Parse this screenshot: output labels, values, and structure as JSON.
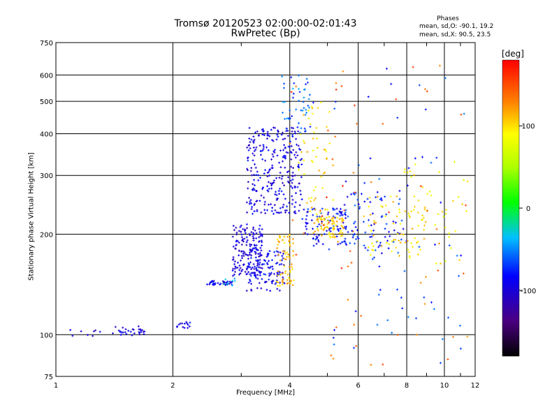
{
  "chart_data": {
    "type": "scatter",
    "title": "Tromsø 20120523 02:00:00-02:01:43",
    "subtitle": "RwPretec (Bp)",
    "xlabel": "Frequency [MHz]",
    "ylabel": "Stationary phase Virtual Height [km]",
    "xscale": "log",
    "yscale": "log",
    "xlim": [
      1,
      12
    ],
    "ylim": [
      75,
      750
    ],
    "x_ticks": [
      1,
      2,
      4,
      6,
      8,
      10,
      12
    ],
    "y_ticks": [
      75,
      100,
      200,
      300,
      400,
      500,
      600,
      750
    ],
    "grid": true,
    "phases_header": "Phases",
    "phases_stats": [
      "mean, sd,O: -90.1, 19.2",
      "mean, sd,X:  90.5, 23.5"
    ],
    "colorbar": {
      "label": "[deg]",
      "range": [
        -180,
        180
      ],
      "ticks": [
        100,
        0,
        -100
      ],
      "colormap": "rainbow (black-purple-blue-cyan-green-yellow-orange-red)"
    },
    "clusters": [
      {
        "x": [
          1.05,
          1.3
        ],
        "y": [
          98,
          104
        ],
        "phase": -100,
        "n": 8
      },
      {
        "x": [
          1.4,
          1.7
        ],
        "y": [
          99,
          106
        ],
        "phase": -95,
        "n": 30
      },
      {
        "x": [
          2.05,
          2.25
        ],
        "y": [
          104,
          110
        ],
        "phase": -100,
        "n": 14
      },
      {
        "x": [
          2.4,
          2.85
        ],
        "y": [
          141,
          145
        ],
        "phase": -95,
        "n": 35
      },
      {
        "x": [
          2.7,
          3.0
        ],
        "y": [
          140,
          148
        ],
        "phase": -30,
        "n": 8
      },
      {
        "x": [
          2.85,
          3.4
        ],
        "y": [
          150,
          215
        ],
        "phase": -100,
        "n": 160
      },
      {
        "x": [
          3.1,
          3.9
        ],
        "y": [
          135,
          180
        ],
        "phase": -90,
        "n": 120
      },
      {
        "x": [
          3.1,
          4.3
        ],
        "y": [
          230,
          420
        ],
        "phase": -95,
        "n": 280
      },
      {
        "x": [
          3.8,
          4.6
        ],
        "y": [
          400,
          600
        ],
        "phase": -60,
        "n": 50
      },
      {
        "x": [
          3.7,
          4.1
        ],
        "y": [
          140,
          200
        ],
        "phase": 110,
        "n": 70
      },
      {
        "x": [
          4.3,
          5.6
        ],
        "y": [
          180,
          240
        ],
        "phase": -85,
        "n": 90
      },
      {
        "x": [
          4.6,
          5.5
        ],
        "y": [
          195,
          225
        ],
        "phase": 105,
        "n": 70
      },
      {
        "x": [
          4.2,
          5.2
        ],
        "y": [
          220,
          500
        ],
        "phase": 100,
        "n": 60
      },
      {
        "x": [
          4.0,
          6.0
        ],
        "y": [
          150,
          600
        ],
        "phase": 150,
        "n": 25
      },
      {
        "x": [
          5.5,
          8.0
        ],
        "y": [
          175,
          270
        ],
        "phase": -80,
        "n": 80
      },
      {
        "x": [
          6.2,
          9.0
        ],
        "y": [
          170,
          260
        ],
        "phase": 100,
        "n": 70
      },
      {
        "x": [
          7.5,
          11.5
        ],
        "y": [
          160,
          330
        ],
        "phase": 90,
        "n": 45
      },
      {
        "x": [
          5.0,
          11.5
        ],
        "y": [
          80,
          650
        ],
        "phase": -70,
        "n": 60
      },
      {
        "x": [
          5.0,
          11.5
        ],
        "y": [
          80,
          650
        ],
        "phase": 140,
        "n": 40
      }
    ]
  }
}
